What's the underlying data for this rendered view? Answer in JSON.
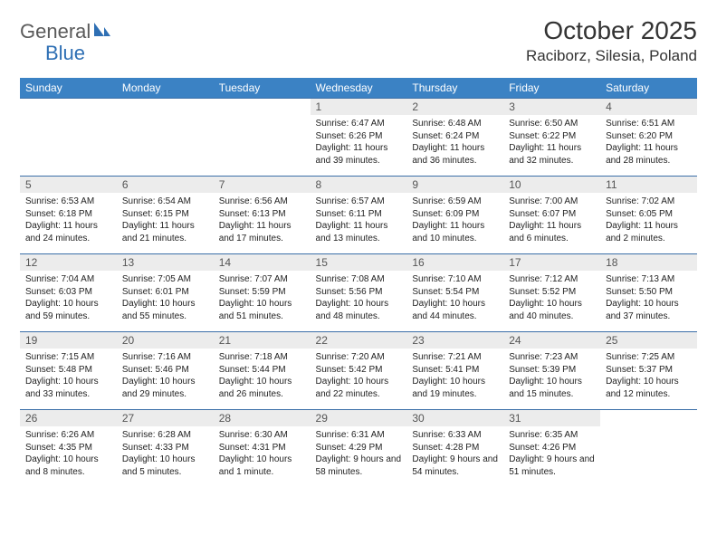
{
  "brand": {
    "part1": "General",
    "part2": "Blue"
  },
  "title": "October 2025",
  "location": "Raciborz, Silesia, Poland",
  "colors": {
    "header_bg": "#3b82c4",
    "header_text": "#ffffff",
    "row_border": "#3b6fa8",
    "daynum_bg": "#ececec",
    "daynum_text": "#555555",
    "body_text": "#222222",
    "title_text": "#333333",
    "logo_gray": "#5a5a5a",
    "logo_blue": "#2e6fb4",
    "page_bg": "#ffffff"
  },
  "weekdays": [
    "Sunday",
    "Monday",
    "Tuesday",
    "Wednesday",
    "Thursday",
    "Friday",
    "Saturday"
  ],
  "weeks": [
    [
      {
        "n": "",
        "sr": "",
        "ss": "",
        "dl": ""
      },
      {
        "n": "",
        "sr": "",
        "ss": "",
        "dl": ""
      },
      {
        "n": "",
        "sr": "",
        "ss": "",
        "dl": ""
      },
      {
        "n": "1",
        "sr": "Sunrise: 6:47 AM",
        "ss": "Sunset: 6:26 PM",
        "dl": "Daylight: 11 hours and 39 minutes."
      },
      {
        "n": "2",
        "sr": "Sunrise: 6:48 AM",
        "ss": "Sunset: 6:24 PM",
        "dl": "Daylight: 11 hours and 36 minutes."
      },
      {
        "n": "3",
        "sr": "Sunrise: 6:50 AM",
        "ss": "Sunset: 6:22 PM",
        "dl": "Daylight: 11 hours and 32 minutes."
      },
      {
        "n": "4",
        "sr": "Sunrise: 6:51 AM",
        "ss": "Sunset: 6:20 PM",
        "dl": "Daylight: 11 hours and 28 minutes."
      }
    ],
    [
      {
        "n": "5",
        "sr": "Sunrise: 6:53 AM",
        "ss": "Sunset: 6:18 PM",
        "dl": "Daylight: 11 hours and 24 minutes."
      },
      {
        "n": "6",
        "sr": "Sunrise: 6:54 AM",
        "ss": "Sunset: 6:15 PM",
        "dl": "Daylight: 11 hours and 21 minutes."
      },
      {
        "n": "7",
        "sr": "Sunrise: 6:56 AM",
        "ss": "Sunset: 6:13 PM",
        "dl": "Daylight: 11 hours and 17 minutes."
      },
      {
        "n": "8",
        "sr": "Sunrise: 6:57 AM",
        "ss": "Sunset: 6:11 PM",
        "dl": "Daylight: 11 hours and 13 minutes."
      },
      {
        "n": "9",
        "sr": "Sunrise: 6:59 AM",
        "ss": "Sunset: 6:09 PM",
        "dl": "Daylight: 11 hours and 10 minutes."
      },
      {
        "n": "10",
        "sr": "Sunrise: 7:00 AM",
        "ss": "Sunset: 6:07 PM",
        "dl": "Daylight: 11 hours and 6 minutes."
      },
      {
        "n": "11",
        "sr": "Sunrise: 7:02 AM",
        "ss": "Sunset: 6:05 PM",
        "dl": "Daylight: 11 hours and 2 minutes."
      }
    ],
    [
      {
        "n": "12",
        "sr": "Sunrise: 7:04 AM",
        "ss": "Sunset: 6:03 PM",
        "dl": "Daylight: 10 hours and 59 minutes."
      },
      {
        "n": "13",
        "sr": "Sunrise: 7:05 AM",
        "ss": "Sunset: 6:01 PM",
        "dl": "Daylight: 10 hours and 55 minutes."
      },
      {
        "n": "14",
        "sr": "Sunrise: 7:07 AM",
        "ss": "Sunset: 5:59 PM",
        "dl": "Daylight: 10 hours and 51 minutes."
      },
      {
        "n": "15",
        "sr": "Sunrise: 7:08 AM",
        "ss": "Sunset: 5:56 PM",
        "dl": "Daylight: 10 hours and 48 minutes."
      },
      {
        "n": "16",
        "sr": "Sunrise: 7:10 AM",
        "ss": "Sunset: 5:54 PM",
        "dl": "Daylight: 10 hours and 44 minutes."
      },
      {
        "n": "17",
        "sr": "Sunrise: 7:12 AM",
        "ss": "Sunset: 5:52 PM",
        "dl": "Daylight: 10 hours and 40 minutes."
      },
      {
        "n": "18",
        "sr": "Sunrise: 7:13 AM",
        "ss": "Sunset: 5:50 PM",
        "dl": "Daylight: 10 hours and 37 minutes."
      }
    ],
    [
      {
        "n": "19",
        "sr": "Sunrise: 7:15 AM",
        "ss": "Sunset: 5:48 PM",
        "dl": "Daylight: 10 hours and 33 minutes."
      },
      {
        "n": "20",
        "sr": "Sunrise: 7:16 AM",
        "ss": "Sunset: 5:46 PM",
        "dl": "Daylight: 10 hours and 29 minutes."
      },
      {
        "n": "21",
        "sr": "Sunrise: 7:18 AM",
        "ss": "Sunset: 5:44 PM",
        "dl": "Daylight: 10 hours and 26 minutes."
      },
      {
        "n": "22",
        "sr": "Sunrise: 7:20 AM",
        "ss": "Sunset: 5:42 PM",
        "dl": "Daylight: 10 hours and 22 minutes."
      },
      {
        "n": "23",
        "sr": "Sunrise: 7:21 AM",
        "ss": "Sunset: 5:41 PM",
        "dl": "Daylight: 10 hours and 19 minutes."
      },
      {
        "n": "24",
        "sr": "Sunrise: 7:23 AM",
        "ss": "Sunset: 5:39 PM",
        "dl": "Daylight: 10 hours and 15 minutes."
      },
      {
        "n": "25",
        "sr": "Sunrise: 7:25 AM",
        "ss": "Sunset: 5:37 PM",
        "dl": "Daylight: 10 hours and 12 minutes."
      }
    ],
    [
      {
        "n": "26",
        "sr": "Sunrise: 6:26 AM",
        "ss": "Sunset: 4:35 PM",
        "dl": "Daylight: 10 hours and 8 minutes."
      },
      {
        "n": "27",
        "sr": "Sunrise: 6:28 AM",
        "ss": "Sunset: 4:33 PM",
        "dl": "Daylight: 10 hours and 5 minutes."
      },
      {
        "n": "28",
        "sr": "Sunrise: 6:30 AM",
        "ss": "Sunset: 4:31 PM",
        "dl": "Daylight: 10 hours and 1 minute."
      },
      {
        "n": "29",
        "sr": "Sunrise: 6:31 AM",
        "ss": "Sunset: 4:29 PM",
        "dl": "Daylight: 9 hours and 58 minutes."
      },
      {
        "n": "30",
        "sr": "Sunrise: 6:33 AM",
        "ss": "Sunset: 4:28 PM",
        "dl": "Daylight: 9 hours and 54 minutes."
      },
      {
        "n": "31",
        "sr": "Sunrise: 6:35 AM",
        "ss": "Sunset: 4:26 PM",
        "dl": "Daylight: 9 hours and 51 minutes."
      },
      {
        "n": "",
        "sr": "",
        "ss": "",
        "dl": ""
      }
    ]
  ]
}
